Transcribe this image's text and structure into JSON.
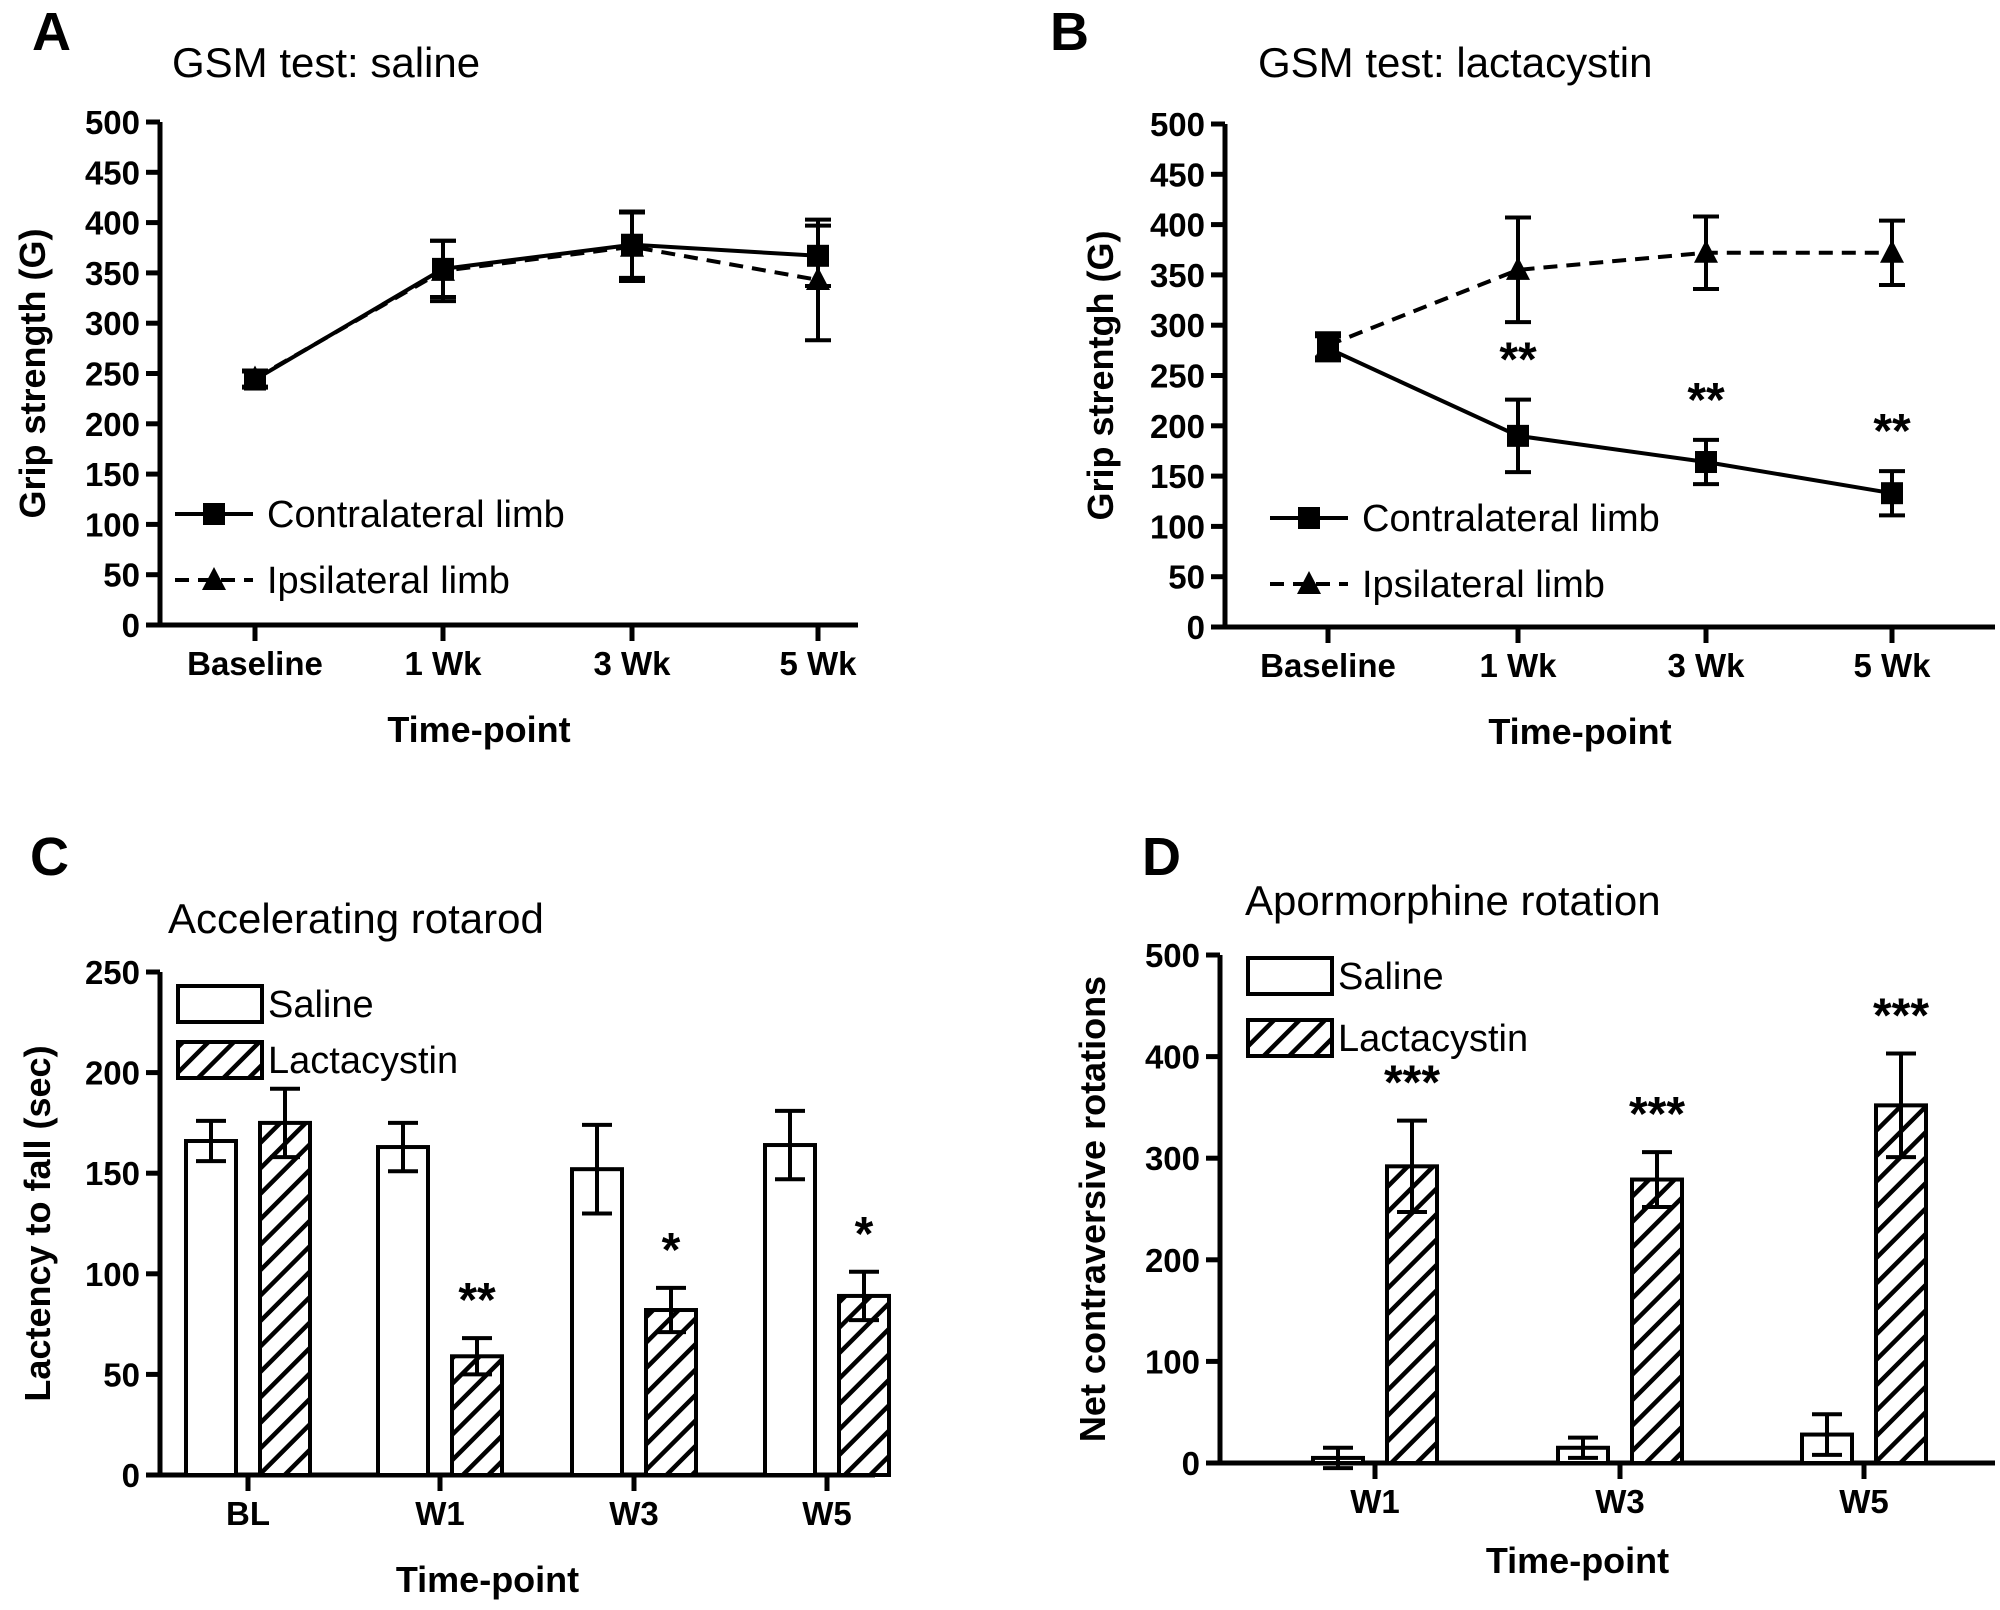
{
  "chart_data": [
    {
      "panel": "A",
      "type": "line",
      "title": "GSM test: saline",
      "xlabel": "Time-point",
      "ylabel": "Grip strength  (G)",
      "categories": [
        "Baseline",
        "1 Wk",
        "3 Wk",
        "5 Wk"
      ],
      "ylim": [
        0,
        500
      ],
      "yticks": [
        0,
        50,
        100,
        150,
        200,
        250,
        300,
        350,
        400,
        450,
        500
      ],
      "series": [
        {
          "name": "Contralateral limb",
          "marker": "square",
          "dash": false,
          "values": [
            244,
            354,
            378,
            367
          ],
          "errors": [
            8,
            28,
            33,
            30
          ]
        },
        {
          "name": "Ipsilateral limb",
          "marker": "triangle",
          "dash": true,
          "values": [
            245,
            352,
            376,
            343
          ],
          "errors": [
            8,
            30,
            34,
            60
          ]
        }
      ],
      "annotations": [
        "",
        "",
        "",
        ""
      ],
      "legend": "bottom-left"
    },
    {
      "panel": "B",
      "type": "line",
      "title": "GSM test: lactacystin",
      "xlabel": "Time-point",
      "ylabel": "Grip strentgh (G)",
      "categories": [
        "Baseline",
        "1 Wk",
        "3 Wk",
        "5 Wk"
      ],
      "ylim": [
        0,
        500
      ],
      "yticks": [
        0,
        50,
        100,
        150,
        200,
        250,
        300,
        350,
        400,
        450,
        500
      ],
      "series": [
        {
          "name": "Contralateral limb",
          "marker": "square",
          "dash": false,
          "values": [
            277,
            190,
            164,
            133
          ],
          "errors": [
            12,
            36,
            22,
            22
          ]
        },
        {
          "name": "Ipsilateral limb",
          "marker": "triangle",
          "dash": true,
          "values": [
            280,
            355,
            372,
            372
          ],
          "errors": [
            12,
            52,
            36,
            32
          ]
        }
      ],
      "annotations": [
        "",
        "**",
        "**",
        "**"
      ],
      "legend": "bottom-left"
    },
    {
      "panel": "C",
      "type": "bar",
      "title": "Accelerating rotarod",
      "xlabel": "Time-point",
      "ylabel": "Lactency to fall (sec)",
      "categories": [
        "BL",
        "W1",
        "W3",
        "W5"
      ],
      "ylim": [
        0,
        250
      ],
      "yticks": [
        0,
        50,
        100,
        150,
        200,
        250
      ],
      "series": [
        {
          "name": "Saline",
          "pattern": "open",
          "values": [
            166,
            163,
            152,
            164
          ],
          "errors": [
            10,
            12,
            22,
            17
          ]
        },
        {
          "name": "Lactacystin",
          "pattern": "hatched",
          "values": [
            175,
            59,
            82,
            89
          ],
          "errors": [
            17,
            9,
            11,
            12
          ]
        }
      ],
      "annotations": [
        "",
        "**",
        "*",
        "*"
      ],
      "legend": "top-left"
    },
    {
      "panel": "D",
      "type": "bar",
      "title": "Apormorphine rotation",
      "xlabel": "Time-point",
      "ylabel": "Net contraversive rotations",
      "categories": [
        "W1",
        "W3",
        "W5"
      ],
      "ylim": [
        0,
        500
      ],
      "yticks": [
        0,
        100,
        200,
        300,
        400,
        500
      ],
      "series": [
        {
          "name": "Saline",
          "pattern": "open",
          "values": [
            5,
            15,
            28
          ],
          "errors": [
            10,
            10,
            20
          ]
        },
        {
          "name": "Lactacystin",
          "pattern": "hatched",
          "values": [
            292,
            279,
            352
          ],
          "errors": [
            45,
            27,
            51
          ]
        }
      ],
      "annotations": [
        "***",
        "***",
        "***"
      ],
      "legend": "top-left"
    }
  ]
}
